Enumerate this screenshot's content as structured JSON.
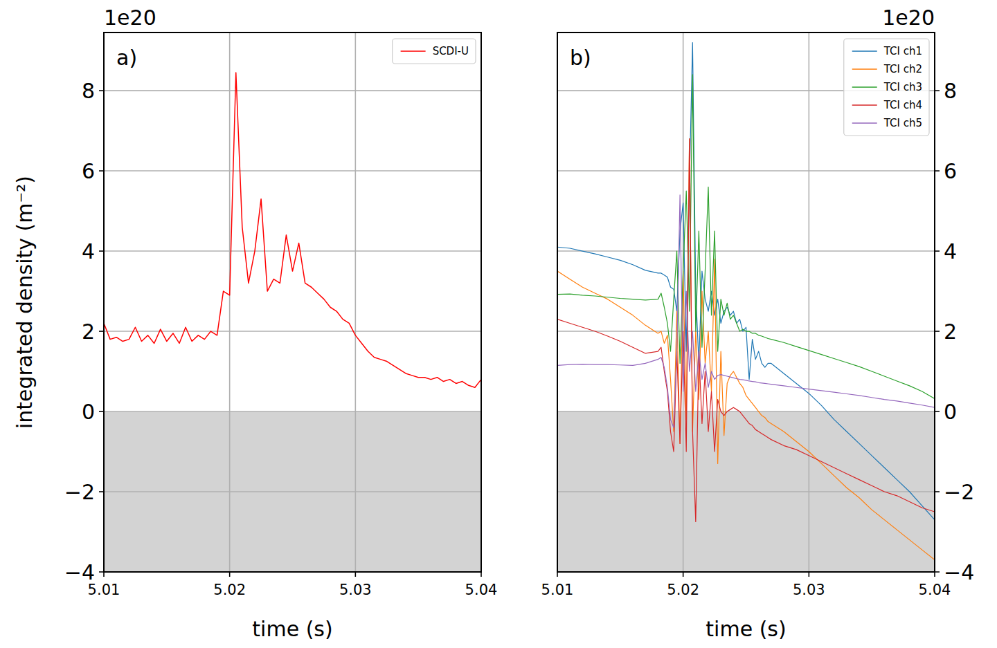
{
  "chart_data": [
    {
      "type": "line",
      "panel_label": "a)",
      "x_label": "time (s)",
      "y_label": "integrated density (m⁻²)",
      "y_offset_label": "1e20",
      "xlim": [
        5.01,
        5.04
      ],
      "xticks": [
        5.01,
        5.02,
        5.03,
        5.04
      ],
      "ylim": [
        -4,
        9.45
      ],
      "yticks": [
        {
          "value": -4,
          "label": "−4"
        },
        {
          "value": -2,
          "label": "−2"
        },
        0,
        2,
        4,
        6,
        8
      ],
      "shaded_ylim": [
        -4,
        0
      ],
      "grid": true,
      "legend": "upper right",
      "x": [
        5.01,
        5.0105,
        5.011,
        5.0115,
        5.012,
        5.0125,
        5.013,
        5.0135,
        5.014,
        5.0145,
        5.015,
        5.0155,
        5.016,
        5.0165,
        5.017,
        5.0175,
        5.018,
        5.0185,
        5.019,
        5.0195,
        5.02,
        5.0205,
        5.021,
        5.0215,
        5.022,
        5.0225,
        5.023,
        5.0235,
        5.024,
        5.0245,
        5.025,
        5.0255,
        5.026,
        5.0265,
        5.027,
        5.0275,
        5.028,
        5.0285,
        5.029,
        5.0295,
        5.03,
        5.0305,
        5.031,
        5.0315,
        5.032,
        5.0325,
        5.033,
        5.0335,
        5.034,
        5.0345,
        5.035,
        5.0355,
        5.036,
        5.0365,
        5.037,
        5.0375,
        5.038,
        5.0385,
        5.039,
        5.0395,
        5.04
      ],
      "series": [
        {
          "name": "SCDI-U",
          "color": "#ff0000",
          "values": [
            2.2,
            1.8,
            1.85,
            1.75,
            1.8,
            2.1,
            1.75,
            1.9,
            1.7,
            2.05,
            1.75,
            1.95,
            1.7,
            2.1,
            1.75,
            1.9,
            1.8,
            2.0,
            1.9,
            3.0,
            2.9,
            8.45,
            4.6,
            3.2,
            4.0,
            5.3,
            3.0,
            3.3,
            3.2,
            4.4,
            3.5,
            4.2,
            3.2,
            3.1,
            2.95,
            2.8,
            2.6,
            2.5,
            2.3,
            2.2,
            1.9,
            1.7,
            1.5,
            1.35,
            1.3,
            1.25,
            1.15,
            1.05,
            0.95,
            0.9,
            0.85,
            0.85,
            0.8,
            0.85,
            0.75,
            0.8,
            0.7,
            0.75,
            0.65,
            0.6,
            0.8
          ]
        }
      ]
    },
    {
      "type": "line",
      "panel_label": "b)",
      "x_label": "time (s)",
      "y_offset_label": "1e20",
      "xlim": [
        5.01,
        5.04
      ],
      "xticks": [
        5.01,
        5.02,
        5.03,
        5.04
      ],
      "y2lim": [
        -4,
        9.45
      ],
      "y2ticks": [
        {
          "value": -4,
          "label": "−4"
        },
        {
          "value": -2,
          "label": "−2"
        },
        0,
        2,
        4,
        6,
        8
      ],
      "shaded_ylim": [
        -4,
        0
      ],
      "grid": true,
      "legend": "upper right",
      "x": [
        5.01,
        5.011,
        5.012,
        5.013,
        5.014,
        5.015,
        5.016,
        5.017,
        5.018,
        5.01825,
        5.0185,
        5.01875,
        5.019,
        5.01925,
        5.0195,
        5.01975,
        5.02,
        5.02025,
        5.0205,
        5.02075,
        5.021,
        5.02125,
        5.0215,
        5.02175,
        5.022,
        5.02225,
        5.0225,
        5.02275,
        5.023,
        5.02325,
        5.0235,
        5.02375,
        5.024,
        5.02425,
        5.0245,
        5.02475,
        5.025,
        5.02525,
        5.0255,
        5.02575,
        5.026,
        5.02625,
        5.0265,
        5.02675,
        5.027,
        5.028,
        5.029,
        5.03,
        5.031,
        5.032,
        5.033,
        5.034,
        5.035,
        5.036,
        5.037,
        5.038,
        5.039,
        5.04
      ],
      "series": [
        {
          "name": "TCI ch1",
          "color": "#1f77b4",
          "axis": "y2",
          "values": [
            4.1,
            4.07,
            4.0,
            3.93,
            3.85,
            3.77,
            3.66,
            3.52,
            3.45,
            3.45,
            3.4,
            3.35,
            3.1,
            3.05,
            2.5,
            4.5,
            5.2,
            1.5,
            5.7,
            9.2,
            3.0,
            1.2,
            3.5,
            2.8,
            2.5,
            3.0,
            2.4,
            2.8,
            2.2,
            2.5,
            2.6,
            2.4,
            2.5,
            2.2,
            2.3,
            2.0,
            2.1,
            0.8,
            1.8,
            1.3,
            1.5,
            1.2,
            1.1,
            1.2,
            1.2,
            0.95,
            0.7,
            0.45,
            0.15,
            -0.2,
            -0.5,
            -0.8,
            -1.1,
            -1.4,
            -1.7,
            -2.0,
            -2.35,
            -2.7
          ]
        },
        {
          "name": "TCI ch2",
          "color": "#ff7f0e",
          "axis": "y2",
          "values": [
            3.5,
            3.3,
            3.1,
            2.95,
            2.8,
            2.6,
            2.4,
            2.15,
            1.95,
            2.0,
            1.7,
            1.9,
            0.8,
            -0.5,
            2.5,
            -0.8,
            3.5,
            -0.2,
            6.8,
            -0.5,
            2.0,
            0.3,
            3.0,
            1.2,
            2.0,
            0.5,
            3.8,
            -1.3,
            1.5,
            -0.6,
            0.7,
            0.9,
            1.0,
            0.85,
            0.7,
            0.6,
            0.4,
            0.3,
            0.2,
            0.1,
            0.0,
            -0.1,
            -0.15,
            -0.25,
            -0.3,
            -0.5,
            -0.75,
            -1.0,
            -1.3,
            -1.6,
            -1.9,
            -2.15,
            -2.45,
            -2.7,
            -2.95,
            -3.2,
            -3.45,
            -3.7
          ]
        },
        {
          "name": "TCI ch3",
          "color": "#2ca02c",
          "axis": "y2",
          "values": [
            2.92,
            2.93,
            2.9,
            2.88,
            2.85,
            2.82,
            2.8,
            2.78,
            2.8,
            2.95,
            2.6,
            2.2,
            1.5,
            2.8,
            4.0,
            1.2,
            3.5,
            5.5,
            2.5,
            8.4,
            2.0,
            4.5,
            1.6,
            3.5,
            5.6,
            2.4,
            4.5,
            1.5,
            2.8,
            2.4,
            2.7,
            2.3,
            2.4,
            2.2,
            2.0,
            2.05,
            2.0,
            2.0,
            1.95,
            1.95,
            1.9,
            1.88,
            1.85,
            1.82,
            1.8,
            1.72,
            1.62,
            1.52,
            1.42,
            1.32,
            1.22,
            1.12,
            1.0,
            0.88,
            0.76,
            0.64,
            0.5,
            0.32
          ]
        },
        {
          "name": "TCI ch4",
          "color": "#d62728",
          "axis": "y2",
          "values": [
            2.3,
            2.2,
            2.1,
            2.0,
            1.88,
            1.75,
            1.6,
            1.45,
            1.5,
            1.6,
            1.0,
            0.5,
            -0.5,
            -1.0,
            1.5,
            -0.8,
            2.0,
            -1.0,
            6.8,
            -0.5,
            -2.75,
            1.5,
            -0.3,
            1.0,
            -0.5,
            0.5,
            -1.0,
            0.3,
            0.0,
            -0.1,
            0.0,
            0.05,
            0.1,
            0.05,
            0.0,
            -0.1,
            -0.2,
            -0.3,
            -0.35,
            -0.45,
            -0.5,
            -0.55,
            -0.6,
            -0.65,
            -0.7,
            -0.85,
            -0.95,
            -1.1,
            -1.25,
            -1.4,
            -1.55,
            -1.7,
            -1.85,
            -2.0,
            -2.1,
            -2.25,
            -2.4,
            -2.5
          ]
        },
        {
          "name": "TCI ch5",
          "color": "#9467bd",
          "axis": "y2",
          "values": [
            1.15,
            1.17,
            1.18,
            1.17,
            1.17,
            1.16,
            1.15,
            1.2,
            1.3,
            1.35,
            1.1,
            0.6,
            -0.2,
            -0.4,
            1.5,
            5.4,
            0.5,
            3.0,
            1.0,
            2.0,
            0.5,
            1.5,
            0.8,
            1.2,
            0.6,
            1.0,
            0.8,
            0.9,
            0.92,
            0.9,
            0.88,
            0.86,
            0.84,
            0.82,
            0.8,
            0.79,
            0.78,
            0.76,
            0.75,
            0.74,
            0.72,
            0.71,
            0.7,
            0.69,
            0.68,
            0.64,
            0.6,
            0.56,
            0.52,
            0.48,
            0.44,
            0.4,
            0.35,
            0.3,
            0.26,
            0.21,
            0.16,
            0.1
          ]
        }
      ]
    }
  ]
}
